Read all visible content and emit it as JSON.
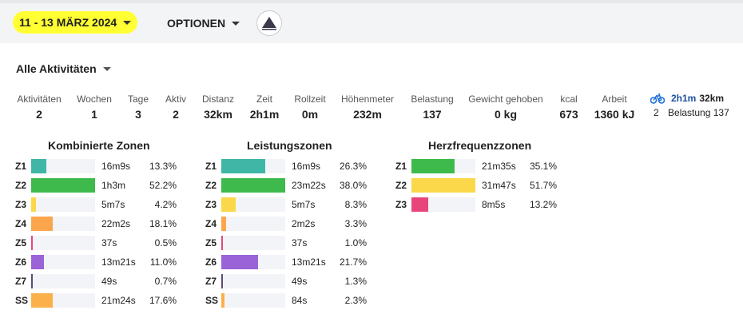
{
  "header": {
    "date_range": "11 - 13 MÄRZ 2024",
    "options_label": "OPTIONEN",
    "logo_icon": "triangle-mountain-logo"
  },
  "filter": {
    "label": "Alle Aktivitäten"
  },
  "stats": [
    {
      "label": "Aktivitäten",
      "value": "2"
    },
    {
      "label": "Wochen",
      "value": "1"
    },
    {
      "label": "Tage",
      "value": "3"
    },
    {
      "label": "Aktiv",
      "value": "2"
    },
    {
      "label": "Distanz",
      "value": "32km"
    },
    {
      "label": "Zeit",
      "value": "2h1m"
    },
    {
      "label": "Rollzeit",
      "value": "0m"
    },
    {
      "label": "Höhenmeter",
      "value": "232m"
    },
    {
      "label": "Belastung",
      "value": "137"
    },
    {
      "label": "Gewicht gehoben",
      "value": "0 kg"
    },
    {
      "label": "kcal",
      "value": "673"
    },
    {
      "label": "Arbeit",
      "value": "1360 kJ"
    }
  ],
  "sport_summary": {
    "icon": "bicycle-icon",
    "time": "2h1m",
    "distance": "32km",
    "count": "2",
    "load": "Belastung 137"
  },
  "colors": {
    "teal": "#40b6a6",
    "green": "#3dba4b",
    "yellow": "#fbd84a",
    "orange": "#fba64c",
    "pink": "#e8467a",
    "purple": "#9a63d8",
    "darkpurple": "#5c4b77",
    "track": "#f3f4f8"
  },
  "zones": {
    "combined": {
      "title": "Kombinierte Zonen",
      "rows": [
        {
          "zone": "Z1",
          "duration": "16m9s",
          "percent": "13.3%",
          "fill": 0.24,
          "color": "#40b6a6"
        },
        {
          "zone": "Z2",
          "duration": "1h3m",
          "percent": "52.2%",
          "fill": 1.0,
          "color": "#3dba4b"
        },
        {
          "zone": "Z3",
          "duration": "5m7s",
          "percent": "4.2%",
          "fill": 0.08,
          "color": "#fbd84a"
        },
        {
          "zone": "Z4",
          "duration": "22m2s",
          "percent": "18.1%",
          "fill": 0.34,
          "color": "#fba64c"
        },
        {
          "zone": "Z5",
          "duration": "37s",
          "percent": "0.5%",
          "fill": 0.01,
          "color": "#e8467a"
        },
        {
          "zone": "Z6",
          "duration": "13m21s",
          "percent": "11.0%",
          "fill": 0.2,
          "color": "#9a63d8"
        },
        {
          "zone": "Z7",
          "duration": "49s",
          "percent": "0.7%",
          "fill": 0.012,
          "color": "#5c4b77"
        },
        {
          "zone": "SS",
          "duration": "21m24s",
          "percent": "17.6%",
          "fill": 0.34,
          "color": "#fbb04c"
        }
      ]
    },
    "power": {
      "title": "Leistungszonen",
      "rows": [
        {
          "zone": "Z1",
          "duration": "16m9s",
          "percent": "26.3%",
          "fill": 0.69,
          "color": "#40b6a6"
        },
        {
          "zone": "Z2",
          "duration": "23m22s",
          "percent": "38.0%",
          "fill": 1.0,
          "color": "#3dba4b"
        },
        {
          "zone": "Z3",
          "duration": "5m7s",
          "percent": "8.3%",
          "fill": 0.22,
          "color": "#fbd84a"
        },
        {
          "zone": "Z4",
          "duration": "2m2s",
          "percent": "3.3%",
          "fill": 0.08,
          "color": "#fba64c"
        },
        {
          "zone": "Z5",
          "duration": "37s",
          "percent": "1.0%",
          "fill": 0.02,
          "color": "#e8467a"
        },
        {
          "zone": "Z6",
          "duration": "13m21s",
          "percent": "21.7%",
          "fill": 0.57,
          "color": "#9a63d8"
        },
        {
          "zone": "Z7",
          "duration": "49s",
          "percent": "1.3%",
          "fill": 0.025,
          "color": "#5c4b77"
        },
        {
          "zone": "SS",
          "duration": "84s",
          "percent": "2.3%",
          "fill": 0.05,
          "color": "#fbb04c"
        }
      ]
    },
    "heart": {
      "title": "Herzfrequenzzonen",
      "rows": [
        {
          "zone": "Z1",
          "duration": "21m35s",
          "percent": "35.1%",
          "fill": 0.68,
          "color": "#3dba4b"
        },
        {
          "zone": "Z2",
          "duration": "31m47s",
          "percent": "51.7%",
          "fill": 1.0,
          "color": "#fbd84a"
        },
        {
          "zone": "Z3",
          "duration": "8m5s",
          "percent": "13.2%",
          "fill": 0.26,
          "color": "#e8467a"
        }
      ]
    }
  }
}
